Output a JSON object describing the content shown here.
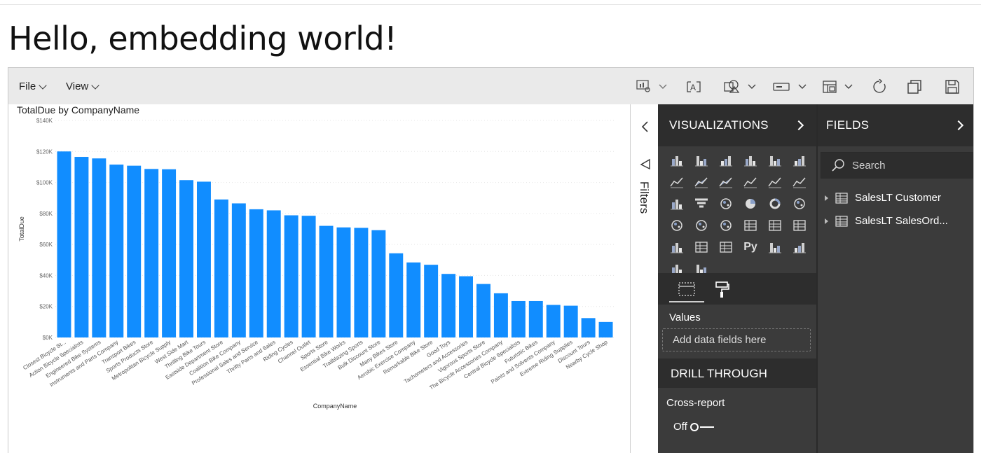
{
  "page": {
    "heading": "Hello, embedding world!"
  },
  "menu": {
    "file": "File",
    "view": "View"
  },
  "toolbar": {
    "icons": [
      "visual-interactions-icon",
      "text-box-icon",
      "shapes-icon",
      "buttons-icon",
      "page-view-icon",
      "refresh-icon",
      "duplicate-icon",
      "save-icon"
    ]
  },
  "filters": {
    "label": "Filters"
  },
  "visualizations": {
    "title": "VISUALIZATIONS",
    "icons": [
      "stacked-bar-icon",
      "stacked-column-icon",
      "clustered-bar-icon",
      "clustered-column-icon",
      "100-stacked-bar-icon",
      "100-stacked-column-icon",
      "line-chart-icon",
      "area-chart-icon",
      "stacked-area-icon",
      "line-column-icon",
      "line-clustered-column-icon",
      "ribbon-chart-icon",
      "waterfall-icon",
      "funnel-icon",
      "scatter-icon",
      "pie-icon",
      "donut-icon",
      "treemap-icon",
      "map-icon",
      "filled-map-icon",
      "gauge-icon",
      "card-icon",
      "multi-row-card-icon",
      "kpi-icon",
      "slicer-icon",
      "table-icon",
      "matrix-icon",
      "python-visual-icon",
      "key-influencers-icon",
      "decomposition-tree-icon",
      "qna-icon",
      "power-apps-icon"
    ],
    "python_label": "Py",
    "values_label": "Values",
    "dropzone": "Add data fields here",
    "drill_title": "DRILL THROUGH",
    "cross_report": "Cross-report",
    "toggle_label": "Off"
  },
  "fields": {
    "title": "FIELDS",
    "search_placeholder": "Search",
    "tables": [
      "SalesLT Customer",
      "SalesLT SalesOrd..."
    ]
  },
  "chart_data": {
    "type": "bar",
    "title": "TotalDue by CompanyName",
    "xlabel": "CompanyName",
    "ylabel": "TotalDue",
    "ylim": [
      0,
      140000
    ],
    "ticks": [
      0,
      20000,
      40000,
      60000,
      80000,
      100000,
      120000,
      140000
    ],
    "tick_labels": [
      "$0K",
      "$20K",
      "$40K",
      "$60K",
      "$80K",
      "$100K",
      "$120K",
      "$140K"
    ],
    "grid": true,
    "color": "#118dff",
    "categories": [
      "Closest Bicycle St...",
      "Action Bicycle Specialists",
      "Engineered Bike Systems",
      "Instruments and Parts Company",
      "Transport Bikes",
      "Sports Products Store",
      "Metropolitan Bicycle Supply",
      "West Side Mart",
      "Thrilling Bike Tours",
      "Eastside Department Store",
      "Coalition Bike Company",
      "Professional Sales and Service",
      "Thrifty Parts and Sales",
      "Riding Cycles",
      "Channel Outlet",
      "Sports Store",
      "Essential Bike Works",
      "Trailblazing Sports",
      "Bulk Discount Store",
      "Many Bikes Store",
      "Aerobic Exercise Company",
      "Remarkable Bike Store",
      "Good Toys",
      "Tachometers and Accessories",
      "Vigorous Sports Store",
      "The Bicycle Accessories Company",
      "Central Bicycle Specialists",
      "Futuristic Bikes",
      "Paints and Solvents Company",
      "Extreme Riding Supplies",
      "Discount Tours",
      "Nearby Cycle Shop"
    ],
    "values": [
      120000,
      116500,
      115500,
      111500,
      110800,
      108700,
      108500,
      101500,
      100500,
      89000,
      86500,
      82700,
      82000,
      78800,
      78500,
      72000,
      71000,
      70700,
      69200,
      54300,
      48400,
      46900,
      41000,
      39500,
      34500,
      28500,
      23500,
      23500,
      21000,
      20500,
      12500,
      10000
    ]
  }
}
